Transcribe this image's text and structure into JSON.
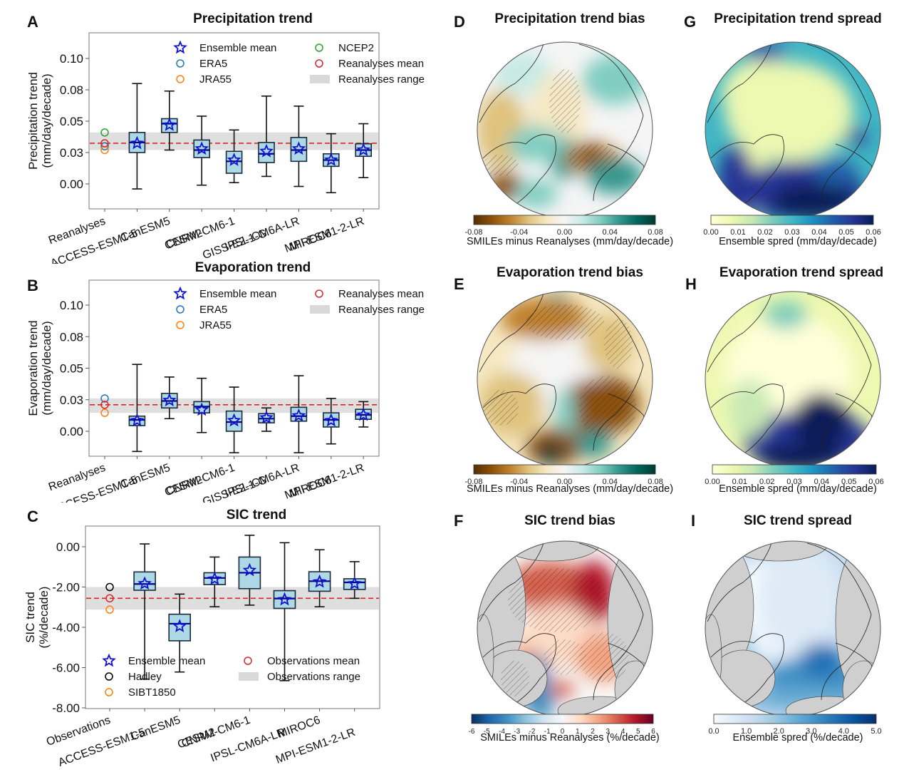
{
  "panels": {
    "A": {
      "letter": "A",
      "title": "Precipitation trend"
    },
    "B": {
      "letter": "B",
      "title": "Evaporation trend"
    },
    "C": {
      "letter": "C",
      "title": "SIC trend"
    },
    "D": {
      "letter": "D",
      "title": "Precipitation trend bias",
      "colorbar_label": "SMILEs minus Reanalyses (mm/day/decade)"
    },
    "E": {
      "letter": "E",
      "title": "Evaporation trend bias",
      "colorbar_label": "SMILEs minus Reanalyses (mm/day/decade)"
    },
    "F": {
      "letter": "F",
      "title": "SIC trend bias",
      "colorbar_label": "SMILEs minus Reanalyses (%/decade)"
    },
    "G": {
      "letter": "G",
      "title": "Precipitation trend spread",
      "colorbar_label": "Ensemble spred (mm/day/decade)"
    },
    "H": {
      "letter": "H",
      "title": "Evaporation trend spread",
      "colorbar_label": "Ensemble spred (mm/day/decade)"
    },
    "I": {
      "letter": "I",
      "title": "SIC trend spread",
      "colorbar_label": "Ensemble spred (%/decade)"
    }
  },
  "colors": {
    "box_fill": "#add8e6",
    "box_edge": "#1a2a3a",
    "median": "#00008b",
    "star": "#1010d0",
    "mean_line": "#d62728",
    "range_band": "#d9d9d9",
    "ERA5": "#1f77b4",
    "JRA55": "#ff7f0e",
    "NCEP2": "#2ca02c",
    "Hadley": "#000000",
    "SIBT1850": "#ff7f0e",
    "ref_mean": "#d62728"
  },
  "chart_data": [
    {
      "id": "A",
      "type": "box",
      "title": "Precipitation trend",
      "ylabel": "Precipitation trend\n(mm/day/decade)",
      "ylim": [
        -0.018,
        0.12
      ],
      "yticks": [
        0.0,
        0.025,
        0.05,
        0.075,
        0.1
      ],
      "ytick_labels": [
        "0.00",
        "0.03",
        "0.05",
        "0.08",
        "0.10"
      ],
      "categories": [
        "Reanalyses",
        "ACCESS-ESM1-5",
        "CanESM5",
        "CESM2",
        "CNRM-CM6-1",
        "GISS-E2-1-G",
        "IPSL-CM6A-LR",
        "MIROC6",
        "MPI-ESM1-2-LR"
      ],
      "reference": {
        "points": [
          {
            "name": "NCEP2",
            "value": 0.041
          },
          {
            "name": "ERA5",
            "value": 0.03
          },
          {
            "name": "JRA55",
            "value": 0.027
          }
        ],
        "mean": 0.0324,
        "range": [
          0.027,
          0.041
        ]
      },
      "boxes": [
        {
          "model": "ACCESS-ESM1-5",
          "whislo": -0.004,
          "q1": 0.025,
          "med": 0.033,
          "q3": 0.041,
          "whishi": 0.08,
          "mean": 0.0324
        },
        {
          "model": "CanESM5",
          "whislo": 0.027,
          "q1": 0.041,
          "med": 0.048,
          "q3": 0.052,
          "whishi": 0.074,
          "mean": 0.047
        },
        {
          "model": "CESM2",
          "whislo": -0.001,
          "q1": 0.021,
          "med": 0.027,
          "q3": 0.035,
          "whishi": 0.054,
          "mean": 0.028
        },
        {
          "model": "CNRM-CM6-1",
          "whislo": 0.001,
          "q1": 0.0085,
          "med": 0.018,
          "q3": 0.026,
          "whishi": 0.043,
          "mean": 0.019
        },
        {
          "model": "GISS-E2-1-G",
          "whislo": 0.006,
          "q1": 0.017,
          "med": 0.024,
          "q3": 0.033,
          "whishi": 0.07,
          "mean": 0.026
        },
        {
          "model": "IPSL-CM6A-LR",
          "whislo": -0.002,
          "q1": 0.018,
          "med": 0.027,
          "q3": 0.037,
          "whishi": 0.062,
          "mean": 0.028
        },
        {
          "model": "MIROC6",
          "whislo": -0.007,
          "q1": 0.014,
          "med": 0.019,
          "q3": 0.024,
          "whishi": 0.04,
          "mean": 0.019
        },
        {
          "model": "MPI-ESM1-2-LR",
          "whislo": 0.005,
          "q1": 0.022,
          "med": 0.027,
          "q3": 0.032,
          "whishi": 0.048,
          "mean": 0.027
        }
      ],
      "legend": {
        "position": "top-right",
        "items": [
          {
            "label": "Ensemble mean",
            "marker": "star"
          },
          {
            "label": "ERA5",
            "marker": "circle",
            "color_key": "ERA5"
          },
          {
            "label": "JRA55",
            "marker": "circle",
            "color_key": "JRA55"
          },
          {
            "label": "NCEP2",
            "marker": "circle",
            "color_key": "NCEP2"
          },
          {
            "label": "Reanalyses mean",
            "marker": "circle",
            "color_key": "ref_mean"
          },
          {
            "label": "Reanalyses range",
            "marker": "band"
          }
        ]
      }
    },
    {
      "id": "B",
      "type": "box",
      "title": "Evaporation trend",
      "ylabel": "Evaporation trend\n(mm/day/decade)",
      "ylim": [
        -0.02,
        0.12
      ],
      "yticks": [
        0.0,
        0.025,
        0.05,
        0.075,
        0.1
      ],
      "ytick_labels": [
        "0.00",
        "0.03",
        "0.05",
        "0.08",
        "0.10"
      ],
      "categories": [
        "Reanalyses",
        "ACCESS-ESM1-5",
        "CanESM5",
        "CESM2",
        "CNRM-CM6-1",
        "GISS-E2-1-G",
        "IPSL-CM6A-LR",
        "MIROC6",
        "MPI-ESM1-2-LR"
      ],
      "reference": {
        "points": [
          {
            "name": "ERA5",
            "value": 0.026
          },
          {
            "name": "JRA55",
            "value": 0.0146
          }
        ],
        "mean": 0.021,
        "range": [
          0.0146,
          0.026
        ]
      },
      "boxes": [
        {
          "model": "ACCESS-ESM1-5",
          "whislo": -0.016,
          "q1": 0.0045,
          "med": 0.009,
          "q3": 0.012,
          "whishi": 0.053,
          "mean": 0.0085
        },
        {
          "model": "CanESM5",
          "whislo": 0.01,
          "q1": 0.0185,
          "med": 0.024,
          "q3": 0.03,
          "whishi": 0.043,
          "mean": 0.0245
        },
        {
          "model": "CESM2",
          "whislo": -0.001,
          "q1": 0.0146,
          "med": 0.0196,
          "q3": 0.0235,
          "whishi": 0.042,
          "mean": 0.017
        },
        {
          "model": "CNRM-CM6-1",
          "whislo": -0.017,
          "q1": 0.0,
          "med": 0.0073,
          "q3": 0.016,
          "whishi": 0.035,
          "mean": 0.0085
        },
        {
          "model": "GISS-E2-1-G",
          "whislo": 0.0,
          "q1": 0.0067,
          "med": 0.01,
          "q3": 0.014,
          "whishi": 0.0185,
          "mean": 0.0107
        },
        {
          "model": "IPSL-CM6A-LR",
          "whislo": -0.017,
          "q1": 0.008,
          "med": 0.012,
          "q3": 0.019,
          "whishi": 0.044,
          "mean": 0.0123
        },
        {
          "model": "MIROC6",
          "whislo": -0.01,
          "q1": 0.0034,
          "med": 0.009,
          "q3": 0.0146,
          "whishi": 0.026,
          "mean": 0.0085
        },
        {
          "model": "MPI-ESM1-2-LR",
          "whislo": 0.0034,
          "q1": 0.0095,
          "med": 0.013,
          "q3": 0.0174,
          "whishi": 0.0235,
          "mean": 0.0129
        }
      ],
      "legend": {
        "position": "top-right",
        "items": [
          {
            "label": "Ensemble mean",
            "marker": "star"
          },
          {
            "label": "ERA5",
            "marker": "circle",
            "color_key": "ERA5"
          },
          {
            "label": "JRA55",
            "marker": "circle",
            "color_key": "JRA55"
          },
          {
            "label": "Reanalyses mean",
            "marker": "circle",
            "color_key": "ref_mean"
          },
          {
            "label": "Reanalyses range",
            "marker": "band"
          }
        ]
      }
    },
    {
      "id": "C",
      "type": "box",
      "title": "SIC trend",
      "ylabel": "SIC trend\n(%/decade)",
      "ylim": [
        -8.0,
        0.95
      ],
      "yticks": [
        -8,
        -6,
        -4,
        -2,
        0
      ],
      "ytick_labels": [
        "-8.00",
        "-6.00",
        "-4.00",
        "-2.00",
        "0.00"
      ],
      "categories": [
        "Observations",
        "ACCESS-ESM1-5",
        "CanESM5",
        "CESM2",
        "CNRM-CM6-1",
        "IPSL-CM6A-LR",
        "MIROC6",
        "MPI-ESM1-2-LR"
      ],
      "reference": {
        "points": [
          {
            "name": "Hadley",
            "value": -2.0
          },
          {
            "name": "SIBT1850",
            "value": -3.12
          }
        ],
        "mean": -2.56,
        "range": [
          -3.12,
          -2.0
        ]
      },
      "boxes": [
        {
          "model": "ACCESS-ESM1-5",
          "whislo": -6.57,
          "q1": -2.16,
          "med": -1.85,
          "q3": -1.25,
          "whishi": 0.14,
          "mean": -1.83
        },
        {
          "model": "CanESM5",
          "whislo": -6.22,
          "q1": -4.67,
          "med": -3.82,
          "q3": -3.35,
          "whishi": -2.35,
          "mean": -3.95
        },
        {
          "model": "CESM2",
          "whislo": -2.98,
          "q1": -1.88,
          "med": -1.55,
          "q3": -1.29,
          "whishi": -0.51,
          "mean": -1.6
        },
        {
          "model": "CNRM-CM6-1",
          "whislo": -2.9,
          "q1": -2.08,
          "med": -1.29,
          "q3": -0.51,
          "whishi": 0.57,
          "mean": -1.17
        },
        {
          "model": "IPSL-CM6A-LR",
          "whislo": -6.65,
          "q1": -3.06,
          "med": -2.57,
          "q3": -2.18,
          "whishi": 0.2,
          "mean": -2.62
        },
        {
          "model": "MIROC6",
          "whislo": -2.98,
          "q1": -2.21,
          "med": -1.71,
          "q3": -1.24,
          "whishi": -0.15,
          "mean": -1.74
        },
        {
          "model": "MPI-ESM1-2-LR",
          "whislo": -2.56,
          "q1": -2.12,
          "med": -1.77,
          "q3": -1.59,
          "whishi": -0.74,
          "mean": -1.83
        }
      ],
      "legend": {
        "position": "lower-left",
        "items": [
          {
            "label": "Ensemble mean",
            "marker": "star"
          },
          {
            "label": "Hadley",
            "marker": "circle",
            "color_key": "Hadley"
          },
          {
            "label": "SIBT1850",
            "marker": "circle",
            "color_key": "SIBT1850"
          },
          {
            "label": "Observations mean",
            "marker": "circle",
            "color_key": "ref_mean"
          },
          {
            "label": "Observations range",
            "marker": "band"
          }
        ]
      }
    },
    {
      "id": "D",
      "type": "heatmap",
      "title": "Precipitation trend bias",
      "projection": "north-polar-stereographic",
      "colormap": "BrBG",
      "vmin": -0.08,
      "vmax": 0.08,
      "colorbar_ticks": [
        "-0.08",
        "-0.04",
        "0.00",
        "0.04",
        "0.08"
      ],
      "colorbar_label": "SMILEs minus Reanalyses (mm/day/decade)",
      "hatching": true
    },
    {
      "id": "G",
      "type": "heatmap",
      "title": "Precipitation trend spread",
      "projection": "north-polar-stereographic",
      "colormap": "YlGnBu",
      "vmin": 0.0,
      "vmax": 0.06,
      "colorbar_ticks": [
        "0.00",
        "0.01",
        "0.02",
        "0.03",
        "0.04",
        "0.05",
        "0.06"
      ],
      "colorbar_label": "Ensemble spred (mm/day/decade)",
      "hatching": false
    },
    {
      "id": "E",
      "type": "heatmap",
      "title": "Evaporation trend bias",
      "projection": "north-polar-stereographic",
      "colormap": "BrBG",
      "vmin": -0.08,
      "vmax": 0.08,
      "colorbar_ticks": [
        "-0.08",
        "-0.04",
        "0.00",
        "0.04",
        "0.08"
      ],
      "colorbar_label": "SMILEs minus Reanalyses (mm/day/decade)",
      "hatching": true
    },
    {
      "id": "H",
      "type": "heatmap",
      "title": "Evaporation trend spread",
      "projection": "north-polar-stereographic",
      "colormap": "YlGnBu",
      "vmin": 0.0,
      "vmax": 0.06,
      "colorbar_ticks": [
        "0.00",
        "0.01",
        "0.02",
        "0.03",
        "0.04",
        "0.05",
        "0.06"
      ],
      "colorbar_label": "Ensemble spred (mm/day/decade)",
      "hatching": false
    },
    {
      "id": "F",
      "type": "heatmap",
      "title": "SIC trend bias",
      "projection": "north-polar-stereographic",
      "colormap": "RdBu_r",
      "vmin": -6,
      "vmax": 6,
      "colorbar_ticks": [
        "-6",
        "-5",
        "-4",
        "-3",
        "-2",
        "-1",
        "0",
        "1",
        "2",
        "3",
        "4",
        "5",
        "6"
      ],
      "colorbar_label": "SMILEs minus Reanalyses (%/decade)",
      "hatching": true
    },
    {
      "id": "I",
      "type": "heatmap",
      "title": "SIC trend spread",
      "projection": "north-polar-stereographic",
      "colormap": "Blues",
      "vmin": 0.0,
      "vmax": 5.0,
      "colorbar_ticks": [
        "0.0",
        "1.0",
        "2.0",
        "3.0",
        "4.0",
        "5.0"
      ],
      "colorbar_label": "Ensemble spred (%/decade)",
      "hatching": false
    }
  ]
}
